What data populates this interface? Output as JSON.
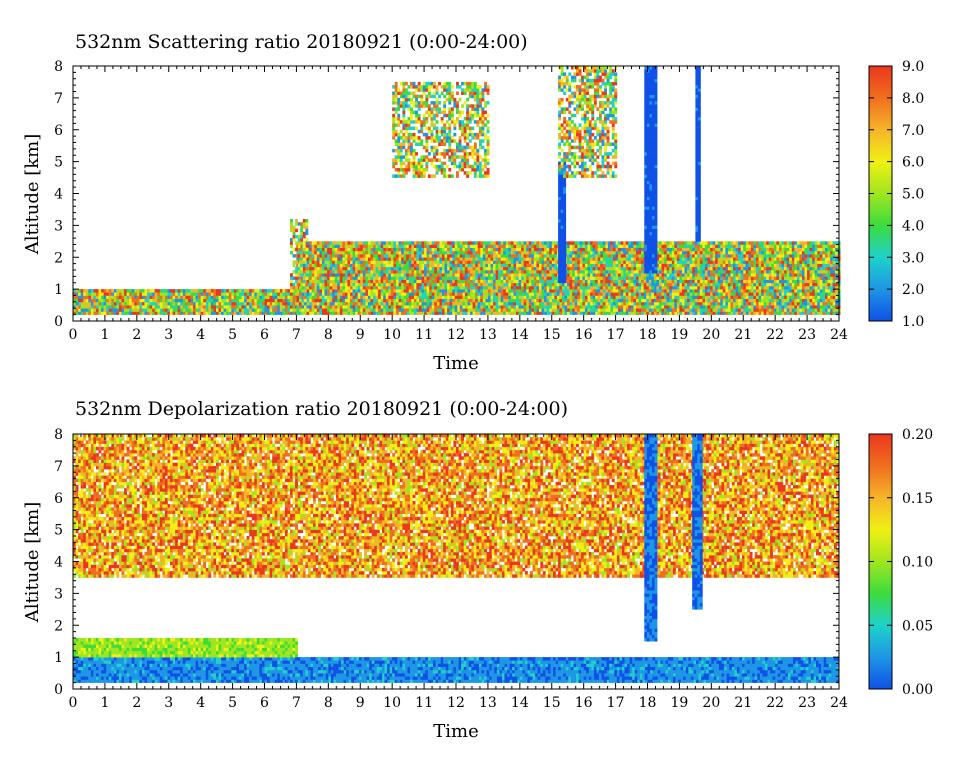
{
  "chart_data": [
    {
      "type": "heatmap",
      "title": "532nm Scattering ratio  20180921 (0:00-24:00)",
      "xlabel": "Time",
      "ylabel": "Altitude [km]",
      "xlim": [
        0,
        24
      ],
      "ylim": [
        0,
        8
      ],
      "x_ticks": [
        "0",
        "1",
        "2",
        "3",
        "4",
        "5",
        "6",
        "7",
        "8",
        "9",
        "10",
        "11",
        "12",
        "13",
        "14",
        "15",
        "16",
        "17",
        "18",
        "19",
        "20",
        "21",
        "22",
        "23",
        "24"
      ],
      "y_ticks": [
        "0",
        "1",
        "2",
        "3",
        "4",
        "5",
        "6",
        "7",
        "8"
      ],
      "colorbar": {
        "range": [
          1.0,
          9.0
        ],
        "ticks": [
          "1.0",
          "2.0",
          "3.0",
          "4.0",
          "5.0",
          "6.0",
          "7.0",
          "8.0",
          "9.0"
        ],
        "colors": [
          "#0f50e6",
          "#1e96e6",
          "#1ed2c8",
          "#3cdc3c",
          "#a0e61e",
          "#f0f014",
          "#f5b428",
          "#f06e1e",
          "#eb371e"
        ]
      },
      "features": [
        {
          "kind": "boundary_layer",
          "time": [
            0,
            7
          ],
          "altitude_km": [
            0.2,
            1.0
          ],
          "value_range": [
            2,
            9
          ]
        },
        {
          "kind": "boundary_layer",
          "time": [
            7,
            24
          ],
          "altitude_km": [
            0.2,
            2.5
          ],
          "value_range": [
            2,
            9
          ]
        },
        {
          "kind": "cloud",
          "time": [
            6.8,
            7.3
          ],
          "altitude_km": [
            1.0,
            3.2
          ],
          "value_range": [
            2,
            9
          ]
        },
        {
          "kind": "low_signal_column",
          "time": [
            15.2,
            15.4
          ],
          "altitude_km": [
            1.2,
            5.0
          ],
          "value_range": [
            1,
            2
          ]
        },
        {
          "kind": "low_signal_column",
          "time": [
            17.9,
            18.3
          ],
          "altitude_km": [
            1.5,
            8.0
          ],
          "value_range": [
            1,
            2
          ]
        },
        {
          "kind": "low_signal_column",
          "time": [
            19.5,
            19.6
          ],
          "altitude_km": [
            2.5,
            8.0
          ],
          "value_range": [
            1,
            2
          ]
        },
        {
          "kind": "cloud",
          "time": [
            15.2,
            17.0
          ],
          "altitude_km": [
            4.5,
            8.0
          ],
          "value_range": [
            2,
            9
          ]
        },
        {
          "kind": "cloud",
          "time": [
            10.0,
            13.0
          ],
          "altitude_km": [
            4.5,
            7.5
          ],
          "value_range": [
            2,
            9
          ]
        }
      ]
    },
    {
      "type": "heatmap",
      "title": "532nm Depolarization ratio  20180921 (0:00-24:00)",
      "xlabel": "Time",
      "ylabel": "Altitude [km]",
      "xlim": [
        0,
        24
      ],
      "ylim": [
        0,
        8
      ],
      "x_ticks": [
        "0",
        "1",
        "2",
        "3",
        "4",
        "5",
        "6",
        "7",
        "8",
        "9",
        "10",
        "11",
        "12",
        "13",
        "14",
        "15",
        "16",
        "17",
        "18",
        "19",
        "20",
        "21",
        "22",
        "23",
        "24"
      ],
      "y_ticks": [
        "0",
        "1",
        "2",
        "3",
        "4",
        "5",
        "6",
        "7",
        "8"
      ],
      "colorbar": {
        "range": [
          0.0,
          0.2
        ],
        "ticks": [
          "0.00",
          "0.05",
          "0.10",
          "0.15",
          "0.20"
        ],
        "colors": [
          "#0f50e6",
          "#1e96e6",
          "#1ed2c8",
          "#3cdc3c",
          "#a0e61e",
          "#f0f014",
          "#f5b428",
          "#f06e1e",
          "#eb371e"
        ]
      },
      "features": [
        {
          "kind": "low_depol_layer",
          "time": [
            0,
            24
          ],
          "altitude_km": [
            0.2,
            1.0
          ],
          "value_range": [
            0.01,
            0.05
          ]
        },
        {
          "kind": "mid_layer",
          "time": [
            0,
            7
          ],
          "altitude_km": [
            1.0,
            1.6
          ],
          "value_range": [
            0.08,
            0.12
          ]
        },
        {
          "kind": "noise_region",
          "time": [
            0,
            24
          ],
          "altitude_km": [
            3.5,
            8.0
          ],
          "value_range": [
            0.1,
            0.2
          ]
        },
        {
          "kind": "low_depol_column",
          "time": [
            17.9,
            18.3
          ],
          "altitude_km": [
            1.5,
            8.0
          ],
          "value_range": [
            0.0,
            0.04
          ]
        },
        {
          "kind": "low_depol_column",
          "time": [
            19.4,
            19.7
          ],
          "altitude_km": [
            2.5,
            8.0
          ],
          "value_range": [
            0.0,
            0.04
          ]
        }
      ]
    }
  ]
}
